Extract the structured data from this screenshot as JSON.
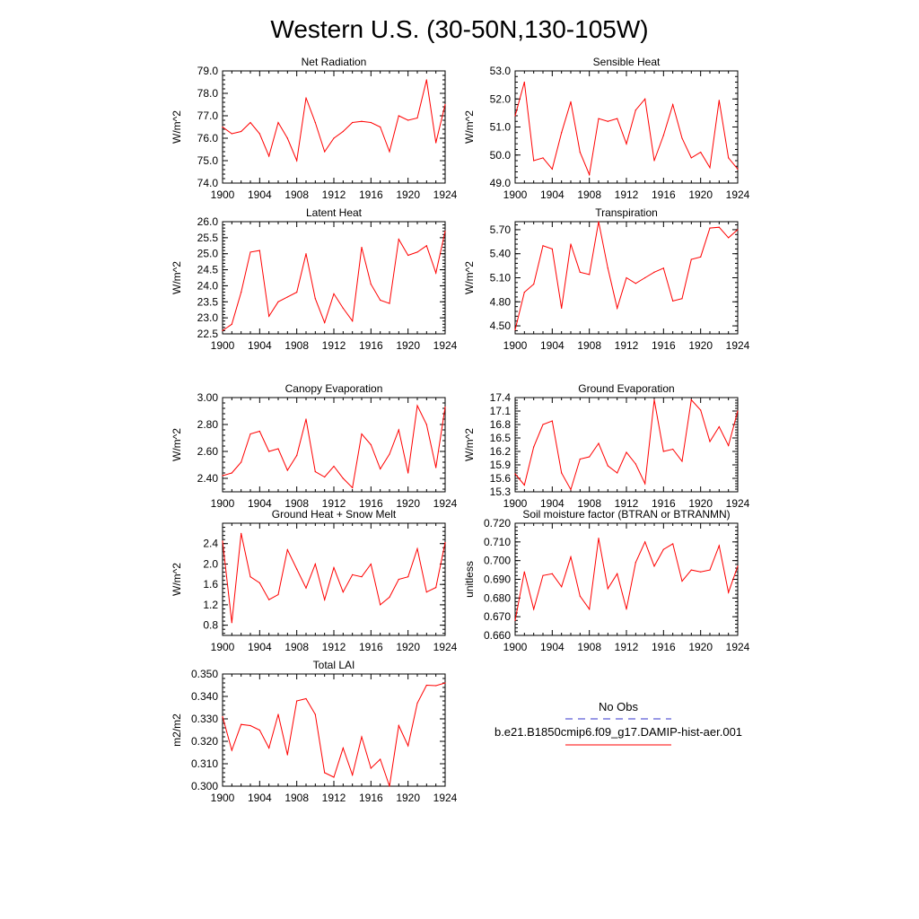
{
  "figure": {
    "title": "Western U.S. (30-50N,130-105W)"
  },
  "legend": {
    "obs_label": "No Obs",
    "model_label": "b.e21.B1850cmip6.f09_g17.DAMIP-hist-aer.001",
    "obs_color": "#3333cc",
    "model_color": "#ff0000"
  },
  "chart_data": [
    {
      "id": "net-radiation",
      "type": "line",
      "title": "Net Radiation",
      "xlabel": "",
      "ylabel": "W/m^2",
      "xlim": [
        1900,
        1924
      ],
      "ylim": [
        74.0,
        79.0
      ],
      "x_ticks": [
        1900,
        1904,
        1908,
        1912,
        1916,
        1920,
        1924
      ],
      "y_ticks": [
        74.0,
        75.0,
        76.0,
        77.0,
        78.0,
        79.0
      ],
      "y_tick_labels": [
        "74.0",
        "75.0",
        "76.0",
        "77.0",
        "78.0",
        "79.0"
      ],
      "x": [
        1900,
        1901,
        1902,
        1903,
        1904,
        1905,
        1906,
        1907,
        1908,
        1909,
        1910,
        1911,
        1912,
        1913,
        1914,
        1915,
        1916,
        1917,
        1918,
        1919,
        1920,
        1921,
        1922,
        1923,
        1924
      ],
      "series": [
        {
          "color": "#ff0000",
          "values": [
            76.5,
            76.2,
            76.3,
            76.7,
            76.2,
            75.2,
            76.7,
            76.0,
            75.0,
            77.8,
            76.7,
            75.4,
            76.0,
            76.3,
            76.7,
            76.75,
            76.7,
            76.5,
            75.4,
            77.0,
            76.8,
            76.9,
            78.6,
            75.8,
            77.5
          ]
        }
      ]
    },
    {
      "id": "sensible-heat",
      "type": "line",
      "title": "Sensible Heat",
      "xlabel": "",
      "ylabel": "W/m^2",
      "xlim": [
        1900,
        1924
      ],
      "ylim": [
        49.0,
        53.0
      ],
      "x_ticks": [
        1900,
        1904,
        1908,
        1912,
        1916,
        1920,
        1924
      ],
      "y_ticks": [
        49.0,
        50.0,
        51.0,
        52.0,
        53.0
      ],
      "y_tick_labels": [
        "49.0",
        "50.0",
        "51.0",
        "52.0",
        "53.0"
      ],
      "x": [
        1900,
        1901,
        1902,
        1903,
        1904,
        1905,
        1906,
        1907,
        1908,
        1909,
        1910,
        1911,
        1912,
        1913,
        1914,
        1915,
        1916,
        1917,
        1918,
        1919,
        1920,
        1921,
        1922,
        1923,
        1924
      ],
      "series": [
        {
          "color": "#ff0000",
          "values": [
            51.4,
            52.6,
            49.8,
            49.9,
            49.5,
            50.8,
            51.9,
            50.1,
            49.3,
            51.3,
            51.2,
            51.3,
            50.4,
            51.6,
            52.0,
            49.8,
            50.7,
            51.8,
            50.6,
            49.9,
            50.1,
            49.55,
            51.95,
            49.9,
            49.5
          ]
        }
      ]
    },
    {
      "id": "latent-heat",
      "type": "line",
      "title": "Latent Heat",
      "xlabel": "",
      "ylabel": "W/m^2",
      "xlim": [
        1900,
        1924
      ],
      "ylim": [
        22.5,
        26.0
      ],
      "x_ticks": [
        1900,
        1904,
        1908,
        1912,
        1916,
        1920,
        1924
      ],
      "y_ticks": [
        22.5,
        23.0,
        23.5,
        24.0,
        24.5,
        25.0,
        25.5,
        26.0
      ],
      "y_tick_labels": [
        "22.5",
        "23.0",
        "23.5",
        "24.0",
        "24.5",
        "25.0",
        "25.5",
        "26.0"
      ],
      "x": [
        1900,
        1901,
        1902,
        1903,
        1904,
        1905,
        1906,
        1907,
        1908,
        1909,
        1910,
        1911,
        1912,
        1913,
        1914,
        1915,
        1916,
        1917,
        1918,
        1919,
        1920,
        1921,
        1922,
        1923,
        1924
      ],
      "series": [
        {
          "color": "#ff0000",
          "values": [
            22.6,
            22.8,
            23.8,
            25.05,
            25.1,
            23.05,
            23.5,
            23.65,
            23.8,
            25.0,
            23.6,
            22.85,
            23.75,
            23.3,
            22.9,
            25.2,
            24.05,
            23.55,
            23.45,
            25.45,
            24.95,
            25.05,
            25.25,
            24.4,
            25.7
          ]
        }
      ]
    },
    {
      "id": "transpiration",
      "type": "line",
      "title": "Transpiration",
      "xlabel": "",
      "ylabel": "W/m^2",
      "xlim": [
        1900,
        1924
      ],
      "ylim": [
        4.4,
        5.8
      ],
      "x_ticks": [
        1900,
        1904,
        1908,
        1912,
        1916,
        1920,
        1924
      ],
      "y_ticks": [
        4.5,
        4.8,
        5.1,
        5.4,
        5.7
      ],
      "y_tick_labels": [
        "4.50",
        "4.80",
        "5.10",
        "5.40",
        "5.70"
      ],
      "x": [
        1900,
        1901,
        1902,
        1903,
        1904,
        1905,
        1906,
        1907,
        1908,
        1909,
        1910,
        1911,
        1912,
        1913,
        1914,
        1915,
        1916,
        1917,
        1918,
        1919,
        1920,
        1921,
        1922,
        1923,
        1924
      ],
      "series": [
        {
          "color": "#ff0000",
          "values": [
            4.45,
            4.92,
            5.02,
            5.5,
            5.46,
            4.72,
            5.52,
            5.17,
            5.14,
            5.8,
            5.22,
            4.72,
            5.1,
            5.03,
            5.1,
            5.17,
            5.22,
            4.81,
            4.84,
            5.33,
            5.36,
            5.72,
            5.73,
            5.6,
            5.7
          ]
        }
      ]
    },
    {
      "id": "canopy-evaporation",
      "type": "line",
      "title": "Canopy Evaporation",
      "xlabel": "",
      "ylabel": "W/m^2",
      "xlim": [
        1900,
        1924
      ],
      "ylim": [
        2.3,
        3.0
      ],
      "x_ticks": [
        1900,
        1904,
        1908,
        1912,
        1916,
        1920,
        1924
      ],
      "y_ticks": [
        2.4,
        2.6,
        2.8,
        3.0
      ],
      "y_tick_labels": [
        "2.40",
        "2.60",
        "2.80",
        "3.00"
      ],
      "x": [
        1900,
        1901,
        1902,
        1903,
        1904,
        1905,
        1906,
        1907,
        1908,
        1909,
        1910,
        1911,
        1912,
        1913,
        1914,
        1915,
        1916,
        1917,
        1918,
        1919,
        1920,
        1921,
        1922,
        1923,
        1924
      ],
      "series": [
        {
          "color": "#ff0000",
          "values": [
            2.42,
            2.44,
            2.52,
            2.73,
            2.75,
            2.6,
            2.62,
            2.46,
            2.57,
            2.84,
            2.45,
            2.41,
            2.49,
            2.4,
            2.33,
            2.73,
            2.65,
            2.47,
            2.58,
            2.76,
            2.44,
            2.94,
            2.8,
            2.48,
            2.93
          ]
        }
      ]
    },
    {
      "id": "ground-evaporation",
      "type": "line",
      "title": "Ground Evaporation",
      "xlabel": "",
      "ylabel": "W/m^2",
      "xlim": [
        1900,
        1924
      ],
      "ylim": [
        15.3,
        17.4
      ],
      "x_ticks": [
        1900,
        1904,
        1908,
        1912,
        1916,
        1920,
        1924
      ],
      "y_ticks": [
        15.3,
        15.6,
        15.9,
        16.2,
        16.5,
        16.8,
        17.1,
        17.4
      ],
      "y_tick_labels": [
        "15.3",
        "15.6",
        "15.9",
        "16.2",
        "16.5",
        "16.8",
        "17.1",
        "17.4"
      ],
      "x": [
        1900,
        1901,
        1902,
        1903,
        1904,
        1905,
        1906,
        1907,
        1908,
        1909,
        1910,
        1911,
        1912,
        1913,
        1914,
        1915,
        1916,
        1917,
        1918,
        1919,
        1920,
        1921,
        1922,
        1923,
        1924
      ],
      "series": [
        {
          "color": "#ff0000",
          "values": [
            15.7,
            15.45,
            16.3,
            16.8,
            16.88,
            15.72,
            15.35,
            16.03,
            16.08,
            16.38,
            15.88,
            15.72,
            16.18,
            15.92,
            15.48,
            17.35,
            16.2,
            16.25,
            15.98,
            17.35,
            17.12,
            16.42,
            16.75,
            16.33,
            17.1
          ]
        }
      ]
    },
    {
      "id": "ground-heat-snow-melt",
      "type": "line",
      "title": "Ground Heat + Snow Melt",
      "xlabel": "",
      "ylabel": "W/m^2",
      "xlim": [
        1900,
        1924
      ],
      "ylim": [
        0.6,
        2.8
      ],
      "x_ticks": [
        1900,
        1904,
        1908,
        1912,
        1916,
        1920,
        1924
      ],
      "y_ticks": [
        0.8,
        1.2,
        1.6,
        2.0,
        2.4
      ],
      "y_tick_labels": [
        "0.8",
        "1.2",
        "1.6",
        "2.0",
        "2.4"
      ],
      "x": [
        1900,
        1901,
        1902,
        1903,
        1904,
        1905,
        1906,
        1907,
        1908,
        1909,
        1910,
        1911,
        1912,
        1913,
        1914,
        1915,
        1916,
        1917,
        1918,
        1919,
        1920,
        1921,
        1922,
        1923,
        1924
      ],
      "series": [
        {
          "color": "#ff0000",
          "values": [
            2.45,
            0.85,
            2.6,
            1.75,
            1.63,
            1.3,
            1.4,
            2.28,
            1.9,
            1.53,
            2.0,
            1.3,
            1.93,
            1.45,
            1.79,
            1.75,
            2.0,
            1.2,
            1.35,
            1.7,
            1.75,
            2.3,
            1.45,
            1.54,
            2.42
          ]
        }
      ]
    },
    {
      "id": "soil-moisture-factor",
      "type": "line",
      "title": "Soil moisture factor (BTRAN or BTRANMN)",
      "xlabel": "",
      "ylabel": "unitless",
      "xlim": [
        1900,
        1924
      ],
      "ylim": [
        0.66,
        0.72
      ],
      "x_ticks": [
        1900,
        1904,
        1908,
        1912,
        1916,
        1920,
        1924
      ],
      "y_ticks": [
        0.66,
        0.67,
        0.68,
        0.69,
        0.7,
        0.71,
        0.72
      ],
      "y_tick_labels": [
        "0.660",
        "0.670",
        "0.680",
        "0.690",
        "0.700",
        "0.710",
        "0.720"
      ],
      "x": [
        1900,
        1901,
        1902,
        1903,
        1904,
        1905,
        1906,
        1907,
        1908,
        1909,
        1910,
        1911,
        1912,
        1913,
        1914,
        1915,
        1916,
        1917,
        1918,
        1919,
        1920,
        1921,
        1922,
        1923,
        1924
      ],
      "series": [
        {
          "color": "#ff0000",
          "values": [
            0.668,
            0.694,
            0.674,
            0.692,
            0.693,
            0.686,
            0.702,
            0.681,
            0.674,
            0.712,
            0.685,
            0.693,
            0.674,
            0.699,
            0.71,
            0.697,
            0.706,
            0.709,
            0.689,
            0.695,
            0.694,
            0.695,
            0.708,
            0.683,
            0.697
          ]
        }
      ]
    },
    {
      "id": "total-lai",
      "type": "line",
      "title": "Total LAI",
      "xlabel": "",
      "ylabel": "m2/m2",
      "xlim": [
        1900,
        1924
      ],
      "ylim": [
        0.3,
        0.35
      ],
      "x_ticks": [
        1900,
        1904,
        1908,
        1912,
        1916,
        1920,
        1924
      ],
      "y_ticks": [
        0.3,
        0.31,
        0.32,
        0.33,
        0.34,
        0.35
      ],
      "y_tick_labels": [
        "0.300",
        "0.310",
        "0.320",
        "0.330",
        "0.340",
        "0.350"
      ],
      "x": [
        1900,
        1901,
        1902,
        1903,
        1904,
        1905,
        1906,
        1907,
        1908,
        1909,
        1910,
        1911,
        1912,
        1913,
        1914,
        1915,
        1916,
        1917,
        1918,
        1919,
        1920,
        1921,
        1922,
        1923,
        1924
      ],
      "series": [
        {
          "color": "#ff0000",
          "values": [
            0.331,
            0.316,
            0.3275,
            0.327,
            0.325,
            0.317,
            0.332,
            0.314,
            0.338,
            0.339,
            0.332,
            0.306,
            0.304,
            0.317,
            0.305,
            0.322,
            0.308,
            0.312,
            0.3,
            0.327,
            0.318,
            0.337,
            0.345,
            0.3448,
            0.346
          ]
        }
      ]
    }
  ]
}
